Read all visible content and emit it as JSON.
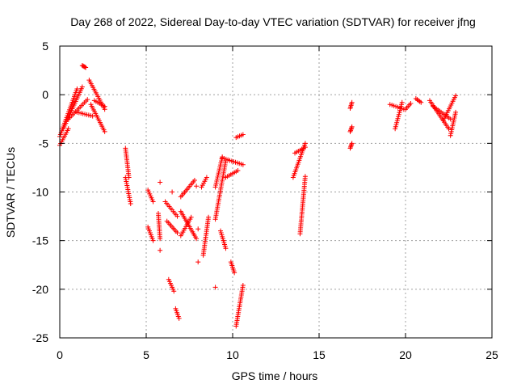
{
  "chart_data": {
    "type": "scatter",
    "title": "Day 268 of 2022, Sidereal Day-to-day VTEC variation (SDTVAR) for receiver jfng",
    "xlabel": "GPS time / hours",
    "ylabel": "SDTVAR / TECUs",
    "xlim": [
      0,
      25
    ],
    "ylim": [
      -25,
      5
    ],
    "xticks": [
      0,
      5,
      10,
      15,
      20,
      25
    ],
    "yticks": [
      -25,
      -20,
      -15,
      -10,
      -5,
      0,
      5
    ],
    "grid": true,
    "marker": "plus",
    "color": "#ff0000",
    "arcs": [
      {
        "x0": 0.0,
        "x1": 0.5,
        "y0": -5.2,
        "y1": -3.5
      },
      {
        "x0": 0.0,
        "x1": 1.0,
        "y0": -4.3,
        "y1": 0.6
      },
      {
        "x0": 0.2,
        "x1": 1.3,
        "y0": -3.5,
        "y1": 0.8
      },
      {
        "x0": 0.5,
        "x1": 1.6,
        "y0": -2.5,
        "y1": -0.5
      },
      {
        "x0": 1.0,
        "x1": 1.9,
        "y0": -1.8,
        "y1": -2.2
      },
      {
        "x0": 1.3,
        "x1": 1.5,
        "y0": 3.0,
        "y1": 2.8
      },
      {
        "x0": 1.7,
        "x1": 2.6,
        "y0": 1.5,
        "y1": -1.5
      },
      {
        "x0": 1.8,
        "x1": 2.6,
        "y0": -1.0,
        "y1": -3.8
      },
      {
        "x0": 2.0,
        "x1": 2.6,
        "y0": -0.6,
        "y1": -1.2
      },
      {
        "x0": 3.8,
        "x1": 4.0,
        "y0": -5.5,
        "y1": -8.5
      },
      {
        "x0": 3.8,
        "x1": 4.1,
        "y0": -8.5,
        "y1": -11.2
      },
      {
        "x0": 5.1,
        "x1": 5.4,
        "y0": -9.8,
        "y1": -11.0
      },
      {
        "x0": 5.1,
        "x1": 5.4,
        "y0": -13.6,
        "y1": -15.0
      },
      {
        "x0": 5.7,
        "x1": 5.8,
        "y0": -12.2,
        "y1": -14.8
      },
      {
        "x0": 6.1,
        "x1": 6.8,
        "y0": -11.0,
        "y1": -12.5
      },
      {
        "x0": 6.2,
        "x1": 6.8,
        "y0": -13.0,
        "y1": -14.2
      },
      {
        "x0": 6.3,
        "x1": 6.6,
        "y0": -19.0,
        "y1": -20.2
      },
      {
        "x0": 6.7,
        "x1": 6.9,
        "y0": -22.0,
        "y1": -23.0
      },
      {
        "x0": 7.0,
        "x1": 7.8,
        "y0": -10.5,
        "y1": -8.8
      },
      {
        "x0": 7.0,
        "x1": 7.9,
        "y0": -12.0,
        "y1": -14.8
      },
      {
        "x0": 7.0,
        "x1": 7.6,
        "y0": -14.5,
        "y1": -12.6
      },
      {
        "x0": 8.2,
        "x1": 8.5,
        "y0": -9.5,
        "y1": -8.5
      },
      {
        "x0": 8.3,
        "x1": 8.6,
        "y0": -16.5,
        "y1": -12.6
      },
      {
        "x0": 9.0,
        "x1": 9.6,
        "y0": -12.8,
        "y1": -6.8
      },
      {
        "x0": 9.0,
        "x1": 9.4,
        "y0": -9.5,
        "y1": -6.4
      },
      {
        "x0": 9.4,
        "x1": 10.6,
        "y0": -6.5,
        "y1": -7.2
      },
      {
        "x0": 9.3,
        "x1": 9.6,
        "y0": -14.0,
        "y1": -15.8
      },
      {
        "x0": 9.6,
        "x1": 10.3,
        "y0": -8.5,
        "y1": -7.8
      },
      {
        "x0": 9.9,
        "x1": 10.1,
        "y0": -17.2,
        "y1": -18.3
      },
      {
        "x0": 10.2,
        "x1": 10.6,
        "y0": -23.8,
        "y1": -19.6
      },
      {
        "x0": 10.2,
        "x1": 10.6,
        "y0": -4.4,
        "y1": -4.1
      },
      {
        "x0": 13.5,
        "x1": 14.2,
        "y0": -8.5,
        "y1": -5.0
      },
      {
        "x0": 13.6,
        "x1": 14.2,
        "y0": -6.0,
        "y1": -5.4
      },
      {
        "x0": 13.9,
        "x1": 14.2,
        "y0": -14.3,
        "y1": -8.4
      },
      {
        "x0": 16.8,
        "x1": 16.9,
        "y0": -1.4,
        "y1": -0.8
      },
      {
        "x0": 16.8,
        "x1": 16.9,
        "y0": -3.8,
        "y1": -3.3
      },
      {
        "x0": 16.8,
        "x1": 16.9,
        "y0": -5.5,
        "y1": -5.0
      },
      {
        "x0": 19.1,
        "x1": 19.9,
        "y0": -1.0,
        "y1": -1.5
      },
      {
        "x0": 19.4,
        "x1": 19.8,
        "y0": -3.5,
        "y1": -0.8
      },
      {
        "x0": 20.0,
        "x1": 20.3,
        "y0": -1.5,
        "y1": -0.9
      },
      {
        "x0": 20.6,
        "x1": 20.9,
        "y0": -0.4,
        "y1": -0.8
      },
      {
        "x0": 21.4,
        "x1": 22.5,
        "y0": -0.6,
        "y1": -3.5
      },
      {
        "x0": 21.6,
        "x1": 22.6,
        "y0": -1.2,
        "y1": -2.5
      },
      {
        "x0": 22.2,
        "x1": 22.9,
        "y0": -2.6,
        "y1": -0.1
      },
      {
        "x0": 22.6,
        "x1": 22.9,
        "y0": -4.2,
        "y1": -1.8
      }
    ],
    "singles": [
      {
        "x": 5.8,
        "y": -9.0
      },
      {
        "x": 5.8,
        "y": -16.0
      },
      {
        "x": 6.5,
        "y": -10.0
      },
      {
        "x": 8.0,
        "y": -17.2
      },
      {
        "x": 9.0,
        "y": -19.8
      },
      {
        "x": 7.9,
        "y": -9.4
      },
      {
        "x": 8.0,
        "y": -13.8
      }
    ]
  }
}
